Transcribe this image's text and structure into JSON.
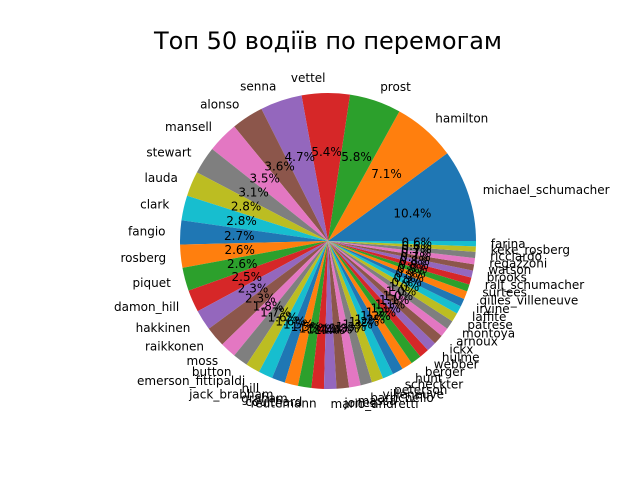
{
  "chart_data": {
    "type": "pie",
    "title": "Топ 50 водіїв по перемогам",
    "start_angle": 0,
    "direction": "counterclockwise",
    "slices": [
      {
        "label": "michael_schumacher",
        "value": 10.4,
        "pct_label": "10.4%",
        "color": "#1f77b4"
      },
      {
        "label": "hamilton",
        "value": 7.1,
        "pct_label": "7.1%",
        "color": "#ff7f0e"
      },
      {
        "label": "prost",
        "value": 5.8,
        "pct_label": "5.8%",
        "color": "#2ca02c"
      },
      {
        "label": "vettel",
        "value": 5.4,
        "pct_label": "5.4%",
        "color": "#d62728"
      },
      {
        "label": "senna",
        "value": 4.7,
        "pct_label": "4.7%",
        "color": "#9467bd"
      },
      {
        "label": "alonso",
        "value": 3.6,
        "pct_label": "3.6%",
        "color": "#8c564b"
      },
      {
        "label": "mansell",
        "value": 3.5,
        "pct_label": "3.5%",
        "color": "#e377c2"
      },
      {
        "label": "stewart",
        "value": 3.1,
        "pct_label": "3.1%",
        "color": "#7f7f7f"
      },
      {
        "label": "lauda",
        "value": 2.8,
        "pct_label": "2.8%",
        "color": "#bcbd22"
      },
      {
        "label": "clark",
        "value": 2.8,
        "pct_label": "2.8%",
        "color": "#17becf"
      },
      {
        "label": "fangio",
        "value": 2.7,
        "pct_label": "2.7%",
        "color": "#1f77b4"
      },
      {
        "label": "rosberg",
        "value": 2.6,
        "pct_label": "2.6%",
        "color": "#ff7f0e"
      },
      {
        "label": "piquet",
        "value": 2.6,
        "pct_label": "2.6%",
        "color": "#2ca02c"
      },
      {
        "label": "damon_hill",
        "value": 2.5,
        "pct_label": "2.5%",
        "color": "#d62728"
      },
      {
        "label": "hakkinen",
        "value": 2.3,
        "pct_label": "2.3%",
        "color": "#9467bd"
      },
      {
        "label": "raikkonen",
        "value": 2.3,
        "pct_label": "2.3%",
        "color": "#8c564b"
      },
      {
        "label": "moss",
        "value": 1.8,
        "pct_label": "1.8%",
        "color": "#e377c2"
      },
      {
        "label": "button",
        "value": 1.7,
        "pct_label": "1.7%",
        "color": "#7f7f7f"
      },
      {
        "label": "emerson_fittipaldi",
        "value": 1.6,
        "pct_label": "1.6%",
        "color": "#bcbd22"
      },
      {
        "label": "hill",
        "value": 1.6,
        "pct_label": "1.6%",
        "color": "#17becf"
      },
      {
        "label": "jack_brabham",
        "value": 1.5,
        "pct_label": "1.5%",
        "color": "#1f77b4"
      },
      {
        "label": "graham",
        "value": 1.5,
        "pct_label": "1.5%",
        "color": "#ff7f0e"
      },
      {
        "label": "coulthard",
        "value": 1.5,
        "pct_label": "1.5%",
        "color": "#2ca02c"
      },
      {
        "label": "reutemann",
        "value": 1.4,
        "pct_label": "1.4%",
        "color": "#d62728"
      },
      {
        "label": "mario_andretti",
        "value": 1.4,
        "pct_label": "1.4%",
        "color": "#9467bd"
      },
      {
        "label": "jones",
        "value": 1.4,
        "pct_label": "1.4%",
        "color": "#8c564b"
      },
      {
        "label": "massa",
        "value": 1.3,
        "pct_label": "1.3%",
        "color": "#e377c2"
      },
      {
        "label": "barrichello",
        "value": 1.3,
        "pct_label": "1.3%",
        "color": "#7f7f7f"
      },
      {
        "label": "villeneuve",
        "value": 1.3,
        "pct_label": "1.3%",
        "color": "#bcbd22"
      },
      {
        "label": "peterson",
        "value": 1.2,
        "pct_label": "1.2%",
        "color": "#17becf"
      },
      {
        "label": "scheckter",
        "value": 1.2,
        "pct_label": "1.2%",
        "color": "#1f77b4"
      },
      {
        "label": "hunt",
        "value": 1.2,
        "pct_label": "1.2%",
        "color": "#ff7f0e"
      },
      {
        "label": "berger",
        "value": 1.2,
        "pct_label": "1.2%",
        "color": "#2ca02c"
      },
      {
        "label": "webber",
        "value": 1.1,
        "pct_label": "1.1%",
        "color": "#d62728"
      },
      {
        "label": "hulme",
        "value": 1.1,
        "pct_label": "1.1%",
        "color": "#9467bd"
      },
      {
        "label": "ickx",
        "value": 1.1,
        "pct_label": "1.1%",
        "color": "#8c564b"
      },
      {
        "label": "arnoux",
        "value": 1.0,
        "pct_label": "1.0%",
        "color": "#e377c2"
      },
      {
        "label": "montoya",
        "value": 1.0,
        "pct_label": "1.0%",
        "color": "#7f7f7f"
      },
      {
        "label": "patrese",
        "value": 1.0,
        "pct_label": "1.0%",
        "color": "#bcbd22"
      },
      {
        "label": "laffite",
        "value": 0.9,
        "pct_label": "0.9%",
        "color": "#17becf"
      },
      {
        "label": "irvine",
        "value": 0.9,
        "pct_label": "0.9%",
        "color": "#1f77b4"
      },
      {
        "label": "gilles_villeneuve",
        "value": 0.9,
        "pct_label": "0.9%",
        "color": "#ff7f0e"
      },
      {
        "label": "surtees",
        "value": 0.8,
        "pct_label": "0.8%",
        "color": "#2ca02c"
      },
      {
        "label": "ralf_schumacher",
        "value": 0.8,
        "pct_label": "0.8%",
        "color": "#d62728"
      },
      {
        "label": "brooks",
        "value": 0.8,
        "pct_label": "0.8%",
        "color": "#9467bd"
      },
      {
        "label": "watson",
        "value": 0.7,
        "pct_label": "0.7%",
        "color": "#8c564b"
      },
      {
        "label": "regazzoni",
        "value": 0.7,
        "pct_label": "0.7%",
        "color": "#e377c2"
      },
      {
        "label": "ricciardo",
        "value": 0.7,
        "pct_label": "0.7%",
        "color": "#7f7f7f"
      },
      {
        "label": "keke_rosberg",
        "value": 0.6,
        "pct_label": "0.6%",
        "color": "#bcbd22"
      },
      {
        "label": "farina",
        "value": 0.6,
        "pct_label": "0.6%",
        "color": "#17becf"
      }
    ]
  }
}
